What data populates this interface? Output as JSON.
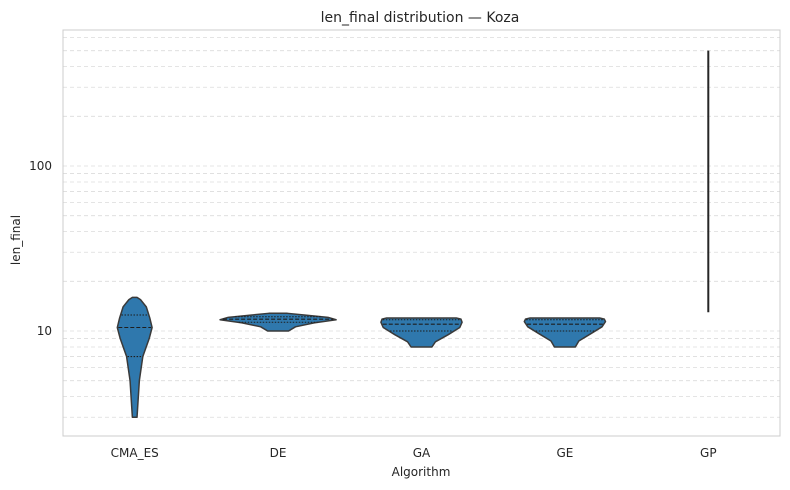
{
  "chart_data": {
    "type": "violin",
    "title": "len_final distribution — Koza",
    "xlabel": "Algorithm",
    "ylabel": "len_final",
    "y_scale": "log",
    "ylim": [
      2.5,
      700
    ],
    "y_major_ticks": [
      10,
      100
    ],
    "y_major_tick_labels": [
      "10",
      "100"
    ],
    "y_minor_grid": [
      3,
      4,
      5,
      6,
      7,
      8,
      9,
      20,
      30,
      40,
      50,
      60,
      70,
      80,
      90,
      200,
      300,
      400,
      500,
      600,
      700
    ],
    "grid": "horizontal-dashed",
    "categories": [
      "CMA_ES",
      "DE",
      "GA",
      "GE",
      "GP"
    ],
    "color": "#2f78ad",
    "edge_color": "#3a3a3a",
    "violins": [
      {
        "name": "CMA_ES",
        "profile": [
          [
            3,
            0.04
          ],
          [
            5,
            0.08
          ],
          [
            7,
            0.14
          ],
          [
            9,
            0.25
          ],
          [
            10.5,
            0.3
          ],
          [
            12,
            0.26
          ],
          [
            14,
            0.2
          ],
          [
            15.5,
            0.1
          ],
          [
            16,
            0.04
          ]
        ],
        "quartiles": [
          7,
          10.5,
          12.5
        ]
      },
      {
        "name": "DE",
        "profile": [
          [
            10,
            0.18
          ],
          [
            10.6,
            0.3
          ],
          [
            11.2,
            0.62
          ],
          [
            11.7,
            1.0
          ],
          [
            12.1,
            0.86
          ],
          [
            12.5,
            0.45
          ],
          [
            12.8,
            0.16
          ]
        ],
        "quartiles": [
          11.3,
          11.8,
          12.2
        ]
      },
      {
        "name": "GA",
        "profile": [
          [
            8,
            0.18
          ],
          [
            8.6,
            0.24
          ],
          [
            9.5,
            0.46
          ],
          [
            10.5,
            0.66
          ],
          [
            11.3,
            0.7
          ],
          [
            11.8,
            0.68
          ],
          [
            12,
            0.6
          ]
        ],
        "quartiles": [
          10,
          11,
          11.7
        ]
      },
      {
        "name": "GE",
        "profile": [
          [
            8,
            0.18
          ],
          [
            8.7,
            0.24
          ],
          [
            9.6,
            0.44
          ],
          [
            10.6,
            0.64
          ],
          [
            11.4,
            0.7
          ],
          [
            11.8,
            0.68
          ],
          [
            12,
            0.6
          ]
        ],
        "quartiles": [
          10,
          11,
          11.7
        ]
      },
      {
        "name": "GP",
        "line": [
          13,
          500
        ]
      }
    ]
  }
}
